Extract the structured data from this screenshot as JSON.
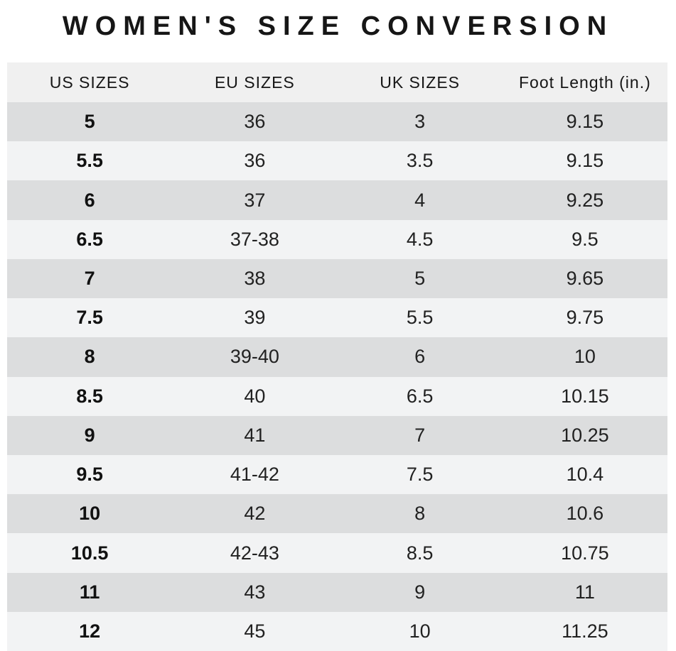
{
  "title": "WOMEN'S SIZE CONVERSION",
  "chart_data": {
    "type": "table",
    "title": "WOMEN'S SIZE CONVERSION",
    "columns": [
      "US SIZES",
      "EU SIZES",
      "UK SIZES",
      "Foot Length (in.)"
    ],
    "rows": [
      [
        "5",
        "36",
        "3",
        "9.15"
      ],
      [
        "5.5",
        "36",
        "3.5",
        "9.15"
      ],
      [
        "6",
        "37",
        "4",
        "9.25"
      ],
      [
        "6.5",
        "37-38",
        "4.5",
        "9.5"
      ],
      [
        "7",
        "38",
        "5",
        "9.65"
      ],
      [
        "7.5",
        "39",
        "5.5",
        "9.75"
      ],
      [
        "8",
        "39-40",
        "6",
        "10"
      ],
      [
        "8.5",
        "40",
        "6.5",
        "10.15"
      ],
      [
        "9",
        "41",
        "7",
        "10.25"
      ],
      [
        "9.5",
        "41-42",
        "7.5",
        "10.4"
      ],
      [
        "10",
        "42",
        "8",
        "10.6"
      ],
      [
        "10.5",
        "42-43",
        "8.5",
        "10.75"
      ],
      [
        "11",
        "43",
        "9",
        "11"
      ],
      [
        "12",
        "45",
        "10",
        "11.25"
      ]
    ],
    "layout": {
      "row_striping": "alternating, first data row dark",
      "bold_column": "US SIZES"
    }
  },
  "colors": {
    "header_bg": "#f0f0f0",
    "row_dark": "#dcddde",
    "row_light": "#f2f3f4",
    "title_text": "#161616",
    "cell_text": "#212121",
    "page_bg": "#ffffff"
  }
}
